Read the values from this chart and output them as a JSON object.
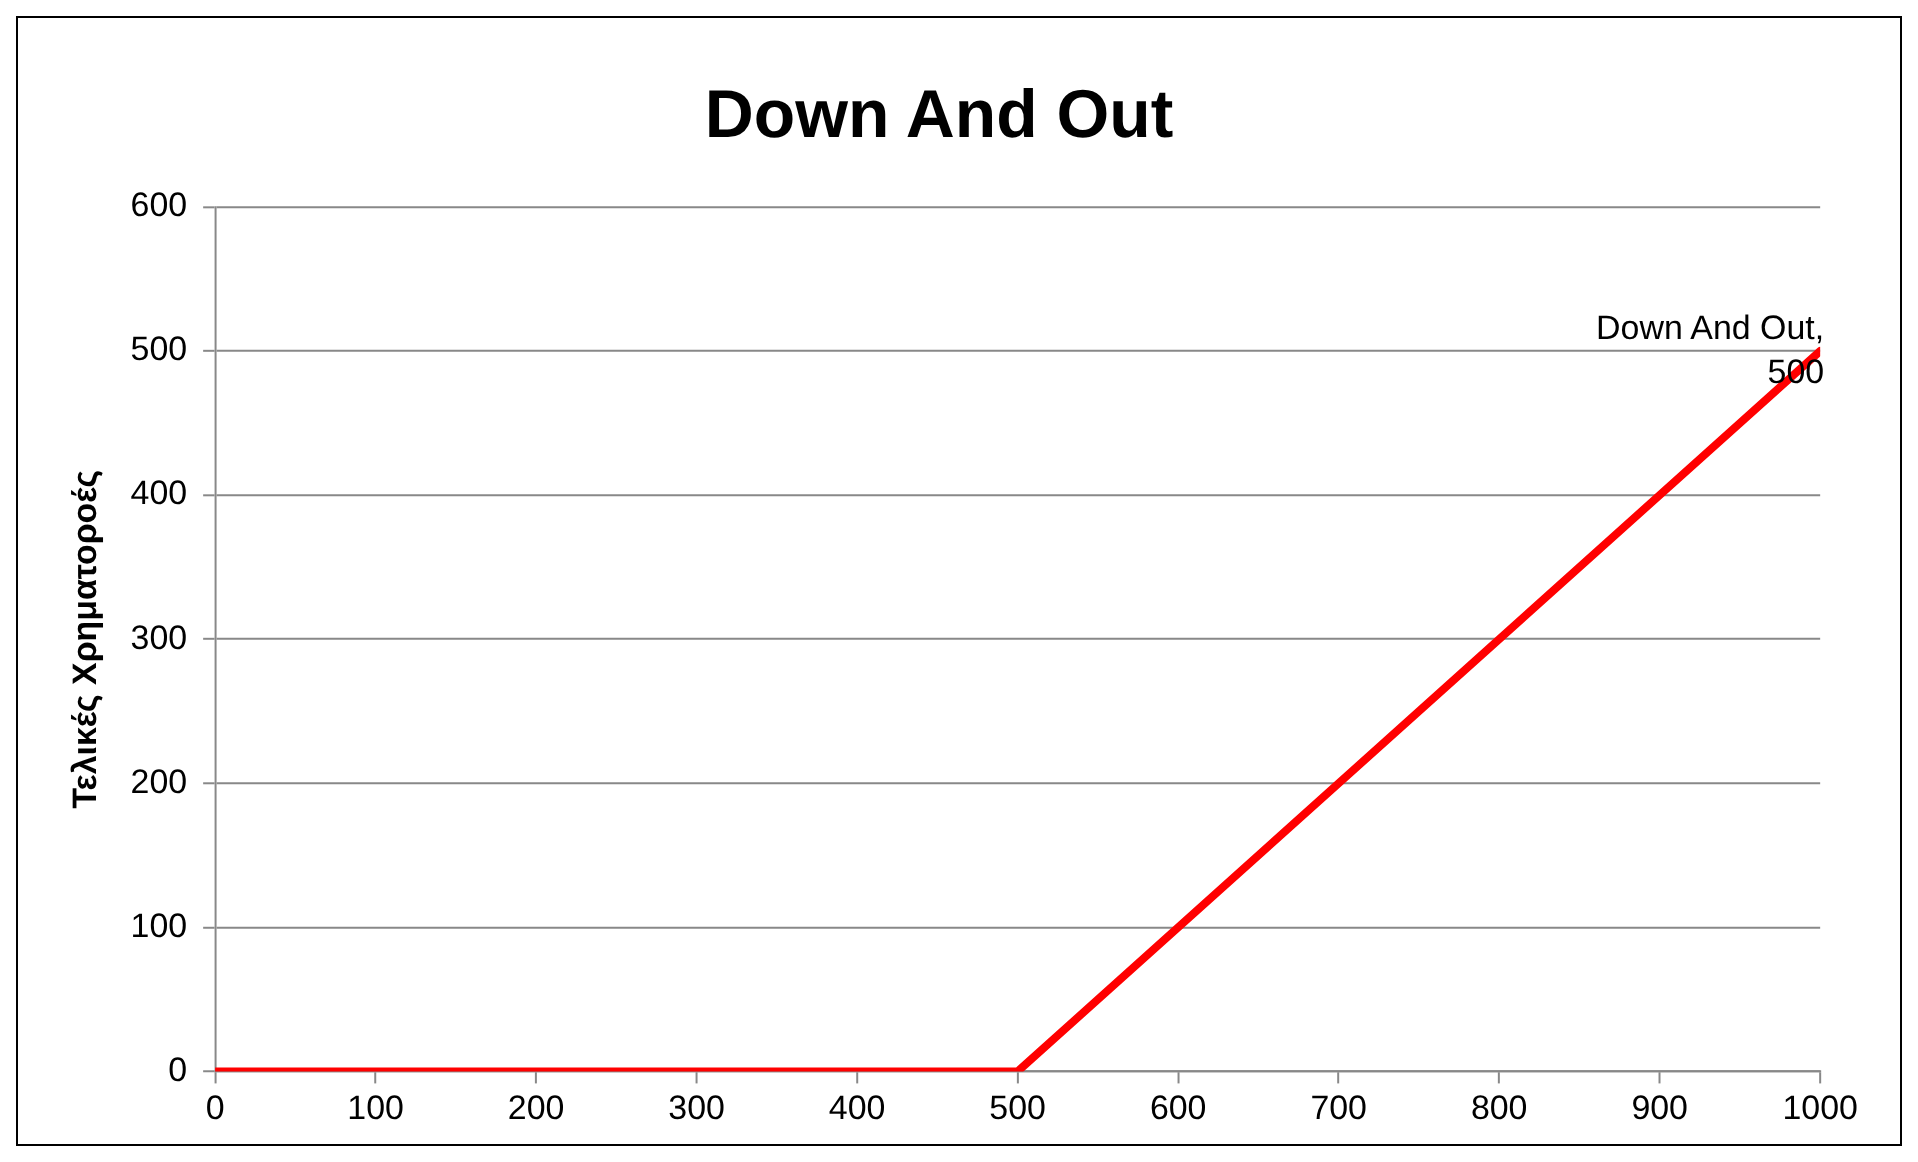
{
  "chart_data": {
    "type": "line",
    "title": "Down And Out",
    "ylabel": "Τελικές Χρηματοροές",
    "x": [
      0,
      500,
      1000
    ],
    "series": [
      {
        "color": "#ff0000",
        "values": [
          0,
          0,
          500
        ]
      }
    ],
    "xlim": [
      0,
      1000
    ],
    "xticks": [
      0,
      100,
      200,
      300,
      400,
      500,
      600,
      700,
      800,
      900,
      1000
    ],
    "ylim": [
      0,
      600
    ],
    "yticks": [
      0,
      100,
      200,
      300,
      400,
      500,
      600
    ],
    "grid": "y",
    "legend": false,
    "marker": "none",
    "line_style": "solid",
    "annotations": [
      {
        "text": "Down And Out, 500",
        "x": 1000,
        "y": 500
      }
    ]
  }
}
